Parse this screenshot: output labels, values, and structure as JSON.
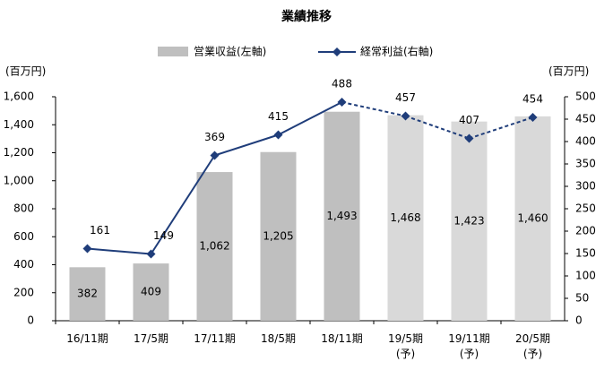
{
  "chart_data": {
    "type": "bar_line",
    "title": "業績推移",
    "y_label": "(百万円)",
    "y2_label": "(百万円)",
    "categories": [
      "16/11期",
      "17/5期",
      "17/11期",
      "18/5期",
      "18/11期",
      "19/5期\n(予)",
      "19/11期\n(予)",
      "20/5期\n(予)"
    ],
    "series": [
      {
        "name": "営業収益(左軸)",
        "type": "bar",
        "axis": "y",
        "colors": [
          "#bfbfbf",
          "#bfbfbf",
          "#bfbfbf",
          "#bfbfbf",
          "#bfbfbf",
          "#d9d9d9",
          "#d9d9d9",
          "#d9d9d9"
        ],
        "color": "#bfbfbf",
        "values": [
          382,
          409,
          1062,
          1205,
          1493,
          1468,
          1423,
          1460
        ],
        "value_labels": [
          "382",
          "409",
          "1,062",
          "1,205",
          "1,493",
          "1,468",
          "1,423",
          "1,460"
        ]
      },
      {
        "name": "経常利益(右軸)",
        "type": "line",
        "axis": "y2",
        "color": "#1f3d7a",
        "values": [
          161,
          149,
          369,
          415,
          488,
          457,
          407,
          454
        ],
        "dashed": [
          false,
          false,
          false,
          false,
          false,
          true,
          true,
          true
        ]
      }
    ],
    "ylim": [
      0,
      1600
    ],
    "yticks": [
      0,
      200,
      400,
      600,
      800,
      {
        "value": 1000,
        "label": "1,000"
      },
      {
        "value": 1200,
        "label": "1,200"
      },
      {
        "value": 1400,
        "label": "1,400"
      },
      {
        "value": 1600,
        "label": "1,600"
      }
    ],
    "y2lim": [
      0,
      500
    ],
    "y2ticks": [
      0,
      50,
      100,
      150,
      200,
      250,
      300,
      350,
      400,
      450,
      500
    ]
  }
}
